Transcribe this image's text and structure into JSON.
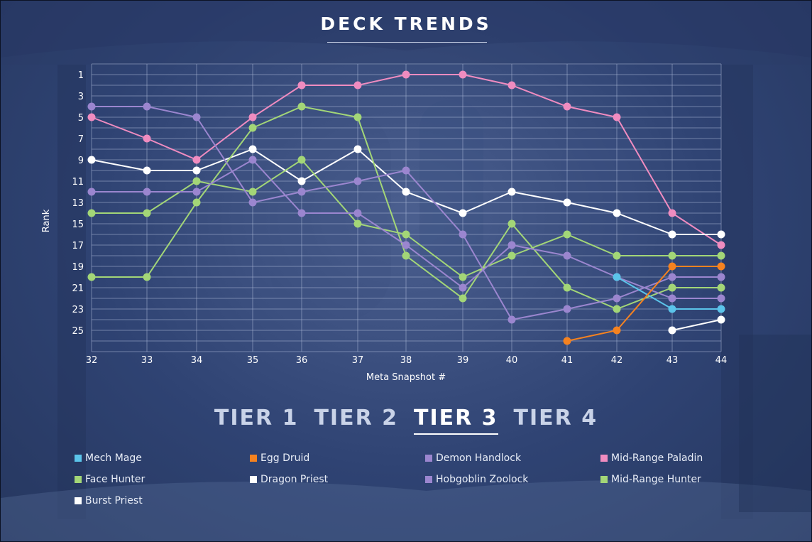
{
  "title": "DECK TRENDS",
  "tiers": [
    {
      "label": "TIER 1",
      "active": false
    },
    {
      "label": "TIER 2",
      "active": false
    },
    {
      "label": "TIER 3",
      "active": true
    },
    {
      "label": "TIER 4",
      "active": false
    }
  ],
  "legend": [
    {
      "label": "Mech Mage",
      "color": "#5bc4ea"
    },
    {
      "label": "Egg Druid",
      "color": "#f58220"
    },
    {
      "label": "Demon Handlock",
      "color": "#9b86cf"
    },
    {
      "label": "Mid-Range Paladin",
      "color": "#f08cc0"
    },
    {
      "label": "Face Hunter",
      "color": "#a3d677"
    },
    {
      "label": "Dragon Priest",
      "color": "#ffffff"
    },
    {
      "label": "Hobgoblin Zoolock",
      "color": "#9b86cf"
    },
    {
      "label": "Mid-Range Hunter",
      "color": "#a3d677"
    },
    {
      "label": "Burst Priest",
      "color": "#ffffff"
    }
  ],
  "chart_data": {
    "type": "line",
    "xlabel": "Meta Snapshot #",
    "ylabel": "Rank",
    "x": [
      32,
      33,
      34,
      35,
      36,
      37,
      38,
      39,
      40,
      41,
      42,
      43,
      44
    ],
    "xlim": [
      32,
      44
    ],
    "ylim": [
      1,
      26
    ],
    "y_reversed": true,
    "y_ticks": [
      1,
      3,
      5,
      7,
      9,
      11,
      13,
      15,
      17,
      19,
      21,
      23,
      25
    ],
    "grid": true,
    "series": [
      {
        "name": "Mid-Range Paladin",
        "color": "#f08cc0",
        "values": [
          5,
          7,
          9,
          5,
          2,
          2,
          1,
          1,
          2,
          4,
          5,
          14,
          17
        ]
      },
      {
        "name": "Dragon Priest",
        "color": "#ffffff",
        "values": [
          9,
          10,
          10,
          8,
          11,
          8,
          12,
          14,
          12,
          13,
          14,
          16,
          16
        ]
      },
      {
        "name": "Face Hunter",
        "color": "#a3d677",
        "values": [
          14,
          14,
          11,
          12,
          9,
          15,
          16,
          20,
          18,
          16,
          18,
          18,
          18
        ]
      },
      {
        "name": "Mid-Range Hunter",
        "color": "#a3d677",
        "values": [
          20,
          20,
          13,
          6,
          4,
          5,
          18,
          22,
          15,
          21,
          23,
          21,
          21
        ]
      },
      {
        "name": "Demon Handlock",
        "color": "#9b86cf",
        "values": [
          4,
          4,
          5,
          13,
          12,
          11,
          10,
          16,
          24,
          23,
          22,
          20,
          20
        ]
      },
      {
        "name": "Hobgoblin Zoolock",
        "color": "#9b86cf",
        "values": [
          12,
          12,
          12,
          9,
          14,
          14,
          17,
          21,
          17,
          18,
          20,
          22,
          22
        ]
      },
      {
        "name": "Mech Mage",
        "color": "#5bc4ea",
        "values": [
          null,
          null,
          null,
          null,
          null,
          null,
          null,
          null,
          null,
          null,
          20,
          23,
          23
        ]
      },
      {
        "name": "Egg Druid",
        "color": "#f58220",
        "values": [
          null,
          null,
          null,
          null,
          null,
          null,
          null,
          null,
          null,
          26,
          25,
          19,
          19
        ]
      },
      {
        "name": "Burst Priest",
        "color": "#ffffff",
        "values": [
          null,
          null,
          null,
          null,
          null,
          null,
          null,
          null,
          null,
          null,
          null,
          25,
          24
        ]
      }
    ]
  }
}
